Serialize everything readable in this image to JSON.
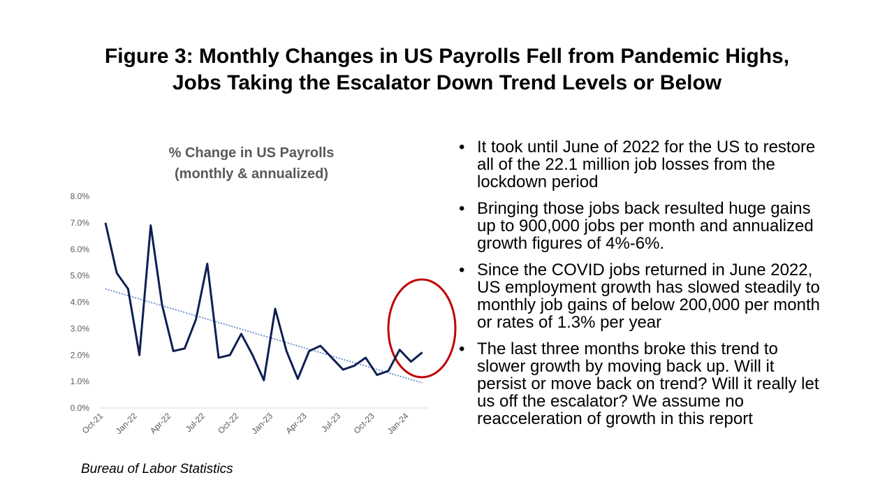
{
  "title_lines": [
    "Figure 3: Monthly Changes in US Payrolls Fell from Pandemic Highs,",
    "Jobs Taking the Escalator Down Trend Levels or Below"
  ],
  "chart_data": {
    "type": "line",
    "title_lines": [
      "% Change in US Payrolls",
      "(monthly & annualized)"
    ],
    "categories": [
      "Oct-21",
      null,
      null,
      "Jan-22",
      null,
      null,
      "Apr-22",
      null,
      null,
      "Jul-22",
      null,
      null,
      "Oct-22",
      null,
      null,
      "Jan-23",
      null,
      null,
      "Apr-23",
      null,
      null,
      "Jul-23",
      null,
      null,
      "Oct-23",
      null,
      null,
      "Jan-24",
      null
    ],
    "values": [
      7.0,
      5.1,
      4.5,
      2.0,
      6.9,
      3.9,
      2.15,
      2.25,
      3.35,
      5.45,
      1.9,
      2.0,
      2.8,
      2.0,
      1.05,
      3.75,
      2.15,
      1.1,
      2.15,
      2.35,
      1.9,
      1.45,
      1.6,
      1.9,
      1.25,
      1.4,
      2.2,
      1.75,
      2.1
    ],
    "color": "#0e1f52",
    "trend_values": [
      4.5,
      0.95
    ],
    "trend_color": "#4472c4",
    "ylim": [
      0,
      8
    ],
    "yticks": [
      {
        "value": 0,
        "label": "0.0%"
      },
      {
        "value": 1,
        "label": "1.0%"
      },
      {
        "value": 2,
        "label": "2.0%"
      },
      {
        "value": 3,
        "label": "3.0%"
      },
      {
        "value": 4,
        "label": "4.0%"
      },
      {
        "value": 5,
        "label": "5.0%"
      },
      {
        "value": 6,
        "label": "6.0%"
      },
      {
        "value": 7,
        "label": "7.0%"
      },
      {
        "value": 8,
        "label": "8.0%"
      }
    ],
    "grid": false
  },
  "bullets": [
    "It took until June of 2022 for the US to restore all of the 22.1 million job losses from the lockdown period",
    "Bringing those jobs back resulted huge gains up to 900,000 jobs per month and annualized growth figures of 4%-6%.",
    "Since the COVID jobs returned in June 2022, US employment growth has slowed steadily to monthly job gains of below 200,000 per month or rates of 1.3% per year",
    "The last three months broke this trend to slower growth by moving back up.  Will it persist or move back on trend?  Will it really let us off the escalator? We assume no reacceleration of growth in this report"
  ],
  "source": "Bureau of Labor Statistics"
}
